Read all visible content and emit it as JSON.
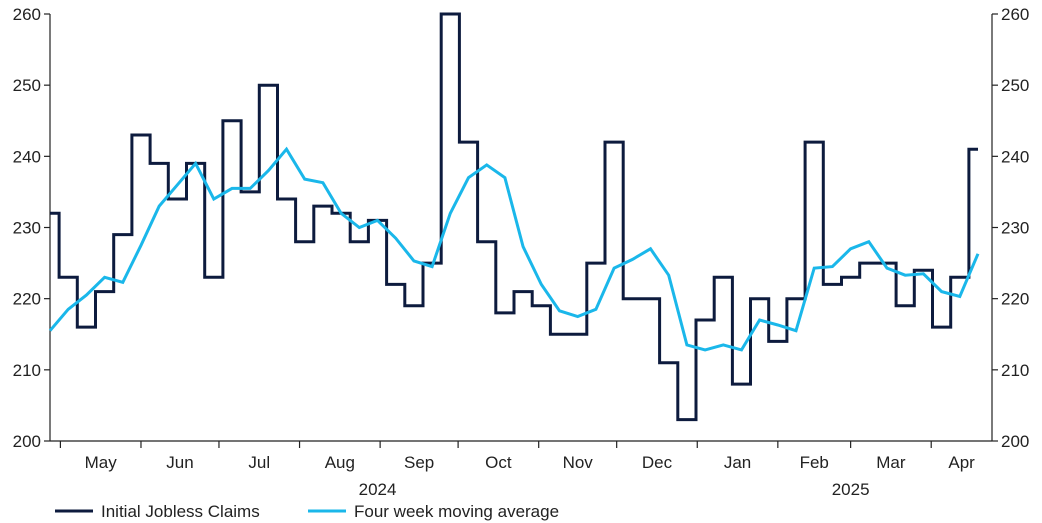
{
  "chart_data": {
    "type": "line",
    "title": "",
    "xlabel": "",
    "ylabel": "",
    "ylim": [
      200,
      260
    ],
    "y_ticks": [
      200,
      210,
      220,
      230,
      240,
      250,
      260
    ],
    "y_axes": "left and right (mirrored)",
    "grid": false,
    "legend_position": "bottom-left",
    "x_tick_labels": [
      "May",
      "Jun",
      "Jul",
      "Aug",
      "Sep",
      "Oct",
      "Nov",
      "Dec",
      "Jan",
      "Feb",
      "Mar",
      "Apr"
    ],
    "year_labels": [
      "2024",
      "2025"
    ],
    "x_range": [
      "2024-04-27",
      "2025-04-19"
    ],
    "series": [
      {
        "name": "Initial Jobless Claims",
        "color": "#0d1b3e",
        "style": "step",
        "x": [
          "2024-04-27",
          "2024-05-04",
          "2024-05-11",
          "2024-05-18",
          "2024-05-25",
          "2024-06-01",
          "2024-06-08",
          "2024-06-15",
          "2024-06-22",
          "2024-06-29",
          "2024-07-06",
          "2024-07-13",
          "2024-07-20",
          "2024-07-27",
          "2024-08-03",
          "2024-08-10",
          "2024-08-17",
          "2024-08-24",
          "2024-08-31",
          "2024-09-07",
          "2024-09-14",
          "2024-09-21",
          "2024-09-28",
          "2024-10-05",
          "2024-10-12",
          "2024-10-19",
          "2024-10-26",
          "2024-11-02",
          "2024-11-09",
          "2024-11-16",
          "2024-11-23",
          "2024-11-30",
          "2024-12-07",
          "2024-12-14",
          "2024-12-21",
          "2024-12-28",
          "2025-01-04",
          "2025-01-11",
          "2025-01-18",
          "2025-01-25",
          "2025-02-01",
          "2025-02-08",
          "2025-02-15",
          "2025-02-22",
          "2025-03-01",
          "2025-03-08",
          "2025-03-15",
          "2025-03-22",
          "2025-03-29",
          "2025-04-05",
          "2025-04-12",
          "2025-04-19"
        ],
        "values": [
          232,
          223,
          216,
          221,
          229,
          243,
          239,
          234,
          239,
          223,
          245,
          235,
          250,
          234,
          228,
          233,
          232,
          228,
          231,
          222,
          219,
          225,
          260,
          242,
          228,
          218,
          221,
          219,
          215,
          215,
          225,
          242,
          220,
          220,
          211,
          203,
          217,
          223,
          208,
          220,
          214,
          220,
          242,
          222,
          223,
          225,
          225,
          219,
          224,
          216,
          223,
          241
        ]
      },
      {
        "name": "Four week moving average",
        "color": "#1ab7ea",
        "style": "line",
        "x": [
          "2024-04-27",
          "2024-05-04",
          "2024-05-11",
          "2024-05-18",
          "2024-05-25",
          "2024-06-01",
          "2024-06-08",
          "2024-06-15",
          "2024-06-22",
          "2024-06-29",
          "2024-07-06",
          "2024-07-13",
          "2024-07-20",
          "2024-07-27",
          "2024-08-03",
          "2024-08-10",
          "2024-08-17",
          "2024-08-24",
          "2024-08-31",
          "2024-09-07",
          "2024-09-14",
          "2024-09-21",
          "2024-09-28",
          "2024-10-05",
          "2024-10-12",
          "2024-10-19",
          "2024-10-26",
          "2024-11-02",
          "2024-11-09",
          "2024-11-16",
          "2024-11-23",
          "2024-11-30",
          "2024-12-07",
          "2024-12-14",
          "2024-12-21",
          "2024-12-28",
          "2025-01-04",
          "2025-01-11",
          "2025-01-18",
          "2025-01-25",
          "2025-02-01",
          "2025-02-08",
          "2025-02-15",
          "2025-02-22",
          "2025-03-01",
          "2025-03-08",
          "2025-03-15",
          "2025-03-22",
          "2025-03-29",
          "2025-04-05",
          "2025-04-12",
          "2025-04-19"
        ],
        "values": [
          215.5,
          218.5,
          220.5,
          223,
          222.3,
          227.5,
          233,
          236,
          239,
          234,
          235.5,
          235.5,
          238,
          241,
          236.8,
          236.3,
          232,
          230,
          231,
          228.5,
          225.3,
          224.5,
          232,
          237,
          238.8,
          237,
          227.3,
          222,
          218.3,
          217.5,
          218.5,
          224.3,
          225.5,
          227,
          223.3,
          213.5,
          212.8,
          213.5,
          212.8,
          217,
          216.3,
          215.5,
          224.3,
          224.5,
          227,
          228,
          224.3,
          223.3,
          223.5,
          221,
          220.3,
          226.3
        ]
      }
    ]
  }
}
